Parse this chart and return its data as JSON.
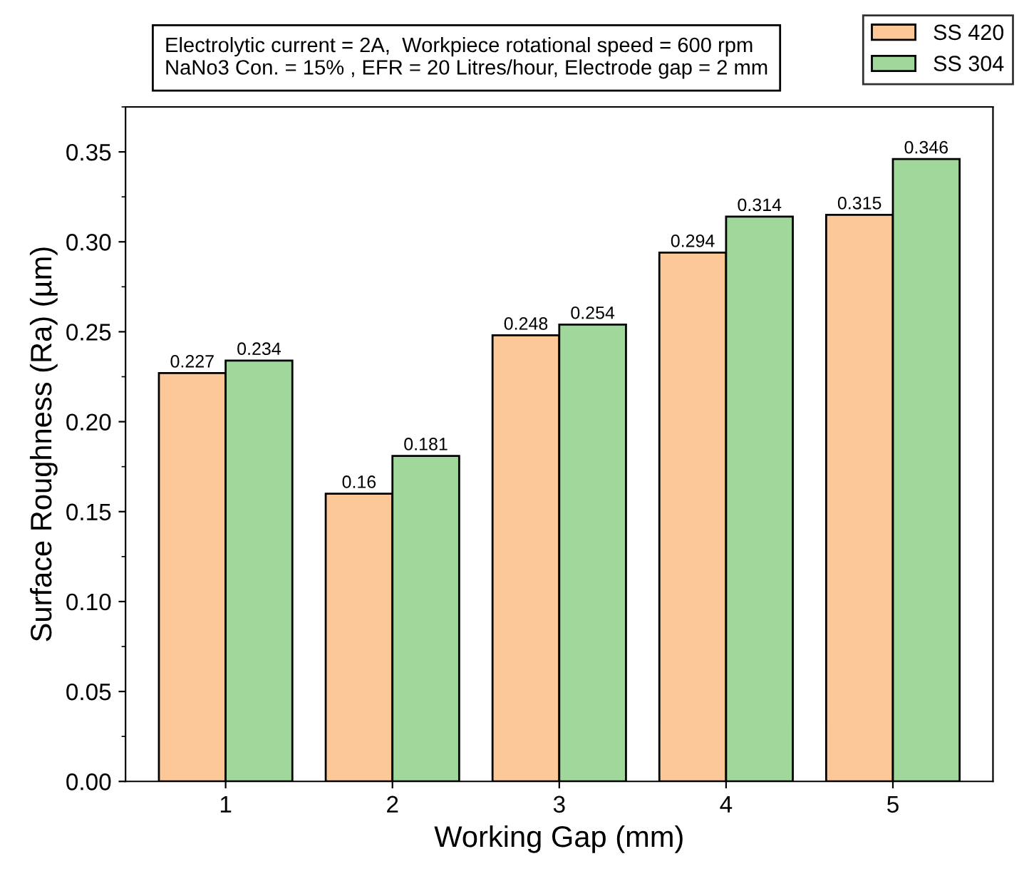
{
  "chart_data": {
    "type": "bar",
    "xlabel": "Working Gap (mm)",
    "ylabel": "Surface Roughness (Ra) (µm)",
    "categories": [
      "1",
      "2",
      "3",
      "4",
      "5"
    ],
    "series": [
      {
        "name": "SS 420",
        "color": "#fdc898",
        "values": [
          0.227,
          0.16,
          0.248,
          0.294,
          0.315
        ]
      },
      {
        "name": "SS 304",
        "color": "#9fd89a",
        "values": [
          0.234,
          0.181,
          0.254,
          0.314,
          0.346
        ]
      }
    ],
    "ylim": [
      0,
      0.375
    ],
    "yticks": [
      {
        "value": 0,
        "label": "0.00"
      },
      {
        "value": 0.05,
        "label": "0.05"
      },
      {
        "value": 0.1,
        "label": "0.10"
      },
      {
        "value": 0.15,
        "label": "0.15"
      },
      {
        "value": 0.2,
        "label": "0.20"
      },
      {
        "value": 0.25,
        "label": "0.25"
      },
      {
        "value": 0.3,
        "label": "0.30"
      },
      {
        "value": 0.35,
        "label": "0.35"
      }
    ],
    "annotations": [
      "Electrolytic current = 2A,  Workpiece rotational speed = 600 rpm\nNaNo3 Con. = 15% , EFR = 20 Litres/hour, Electrode gap = 2 mm"
    ],
    "data_labels": true,
    "legend": "top right",
    "grid": false
  }
}
